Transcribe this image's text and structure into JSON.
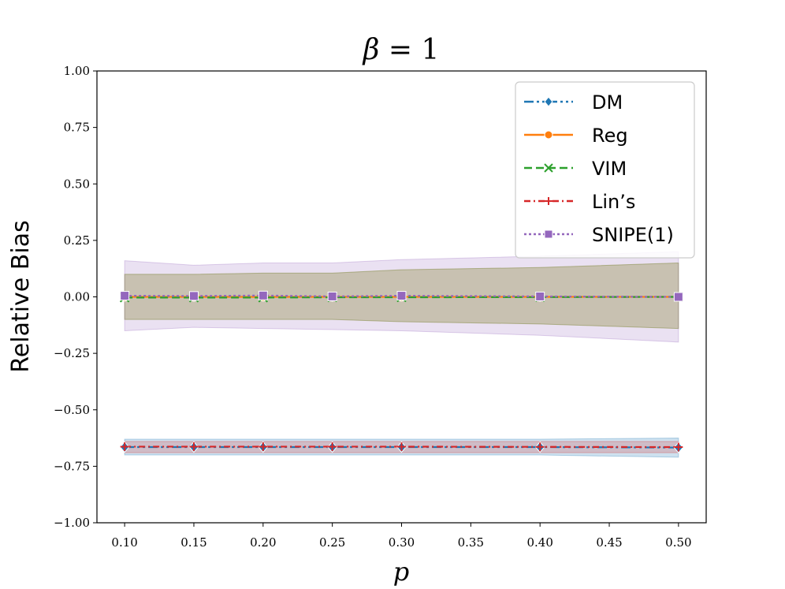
{
  "chart_data": {
    "type": "line",
    "title_symbol": "β",
    "title_rest": " = 1",
    "xlabel": "p",
    "ylabel": "Relative Bias",
    "xlim": [
      0.08,
      0.52
    ],
    "ylim": [
      -1.0,
      1.0
    ],
    "xticks": [
      0.1,
      0.15,
      0.2,
      0.25,
      0.3,
      0.35,
      0.4,
      0.45,
      0.5
    ],
    "xtick_labels": [
      "0.10",
      "0.15",
      "0.20",
      "0.25",
      "0.30",
      "0.35",
      "0.40",
      "0.45",
      "0.50"
    ],
    "yticks": [
      1.0,
      0.75,
      0.5,
      0.25,
      0.0,
      -0.25,
      -0.5,
      -0.75,
      -1.0
    ],
    "ytick_labels": [
      "1.00",
      "0.75",
      "0.50",
      "0.25",
      "0.00",
      "−0.25",
      "−0.50",
      "−0.75",
      "−1.00"
    ],
    "x": [
      0.1,
      0.15,
      0.2,
      0.25,
      0.3,
      0.4,
      0.5
    ],
    "grid": false,
    "legend_position": "top-right",
    "series": [
      {
        "name": "DM",
        "color": "#1f77b4",
        "dash": "12,4,3,4,3,4",
        "marker": "diamond",
        "values": [
          -0.665,
          -0.665,
          -0.665,
          -0.665,
          -0.665,
          -0.665,
          -0.667
        ],
        "band_lower": [
          -0.7,
          -0.7,
          -0.7,
          -0.7,
          -0.7,
          -0.7,
          -0.71
        ],
        "band_upper": [
          -0.63,
          -0.63,
          -0.63,
          -0.63,
          -0.63,
          -0.63,
          -0.625
        ],
        "band_opacity": 0.22
      },
      {
        "name": "Reg",
        "color": "#ff7f0e",
        "dash": "none",
        "marker": "circle",
        "values": [
          0.0,
          0.0,
          0.0,
          0.0,
          0.0,
          0.0,
          0.0
        ],
        "band_lower": [
          -0.1,
          -0.1,
          -0.1,
          -0.1,
          -0.11,
          -0.12,
          -0.14
        ],
        "band_upper": [
          0.1,
          0.1,
          0.105,
          0.105,
          0.12,
          0.13,
          0.15
        ],
        "band_opacity": 0.2
      },
      {
        "name": "VIM",
        "color": "#2ca02c",
        "dash": "10,5",
        "marker": "x",
        "values": [
          -0.003,
          -0.003,
          -0.003,
          -0.002,
          -0.002,
          -0.001,
          0.0
        ],
        "band_lower": [
          -0.1,
          -0.1,
          -0.1,
          -0.1,
          -0.11,
          -0.12,
          -0.14
        ],
        "band_upper": [
          0.1,
          0.1,
          0.105,
          0.105,
          0.12,
          0.13,
          0.15
        ],
        "band_opacity": 0.2
      },
      {
        "name": "Lin’s",
        "color": "#d62728",
        "dash": "8,4,2,4",
        "marker": "plus",
        "values": [
          -0.663,
          -0.663,
          -0.663,
          -0.663,
          -0.663,
          -0.664,
          -0.665
        ],
        "band_lower": [
          -0.69,
          -0.69,
          -0.69,
          -0.69,
          -0.69,
          -0.69,
          -0.69
        ],
        "band_upper": [
          -0.64,
          -0.64,
          -0.64,
          -0.64,
          -0.64,
          -0.64,
          -0.64
        ],
        "band_opacity": 0.2
      },
      {
        "name": "SNIPE(1)",
        "color": "#9467bd",
        "dash": "3,3",
        "marker": "square",
        "values": [
          0.005,
          0.004,
          0.006,
          0.002,
          0.005,
          0.002,
          0.0
        ],
        "band_lower": [
          -0.15,
          -0.135,
          -0.14,
          -0.145,
          -0.15,
          -0.17,
          -0.2
        ],
        "band_upper": [
          0.16,
          0.14,
          0.15,
          0.15,
          0.165,
          0.18,
          0.2
        ],
        "band_opacity": 0.2
      }
    ]
  }
}
